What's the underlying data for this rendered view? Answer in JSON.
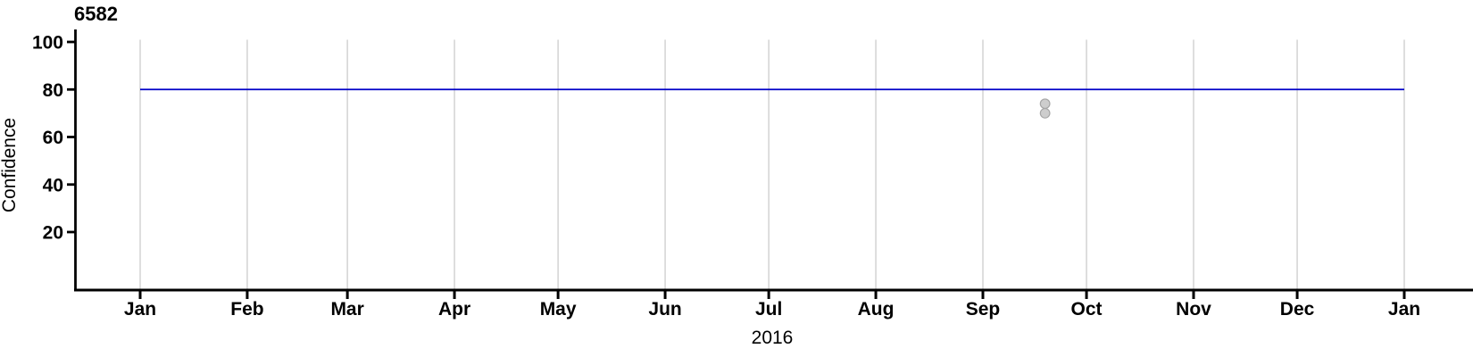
{
  "chart_data": {
    "type": "line+scatter",
    "title": "6582",
    "xlabel": "2016",
    "ylabel": "Confidence",
    "y_ticks": [
      100,
      80,
      60,
      40,
      20
    ],
    "ylim": [
      -4,
      105
    ],
    "grid_value_span": [
      0,
      100
    ],
    "x_unit": "day_of_year",
    "x_range_days": [
      0,
      366
    ],
    "grid": "vertical-lines-at-month-starts",
    "legend": "none",
    "months": [
      {
        "label": "Jan",
        "day": 0
      },
      {
        "label": "Feb",
        "day": 31
      },
      {
        "label": "Mar",
        "day": 60
      },
      {
        "label": "Apr",
        "day": 91
      },
      {
        "label": "May",
        "day": 121
      },
      {
        "label": "Jun",
        "day": 152
      },
      {
        "label": "Jul",
        "day": 182
      },
      {
        "label": "Aug",
        "day": 213
      },
      {
        "label": "Sep",
        "day": 244
      },
      {
        "label": "Oct",
        "day": 274
      },
      {
        "label": "Nov",
        "day": 305
      },
      {
        "label": "Dec",
        "day": 335
      },
      {
        "label": "Jan",
        "day": 366
      }
    ],
    "series": [
      {
        "name": "constant-confidence-line",
        "type": "line",
        "color": "#0000C8",
        "stroke_width": 1.8,
        "points": [
          {
            "day": 0,
            "value": 80
          },
          {
            "day": 366,
            "value": 80
          }
        ]
      },
      {
        "name": "confidence-observations",
        "type": "scatter",
        "fill": "#CDCDCD",
        "stroke": "#A6A6A6",
        "radius": 5.3,
        "points": [
          {
            "day": 262,
            "value": 74
          },
          {
            "day": 262,
            "value": 70
          }
        ]
      }
    ],
    "colors": {
      "axis": "#000000",
      "grid": "#D3D3D3",
      "background": "#FFFFFF"
    }
  }
}
